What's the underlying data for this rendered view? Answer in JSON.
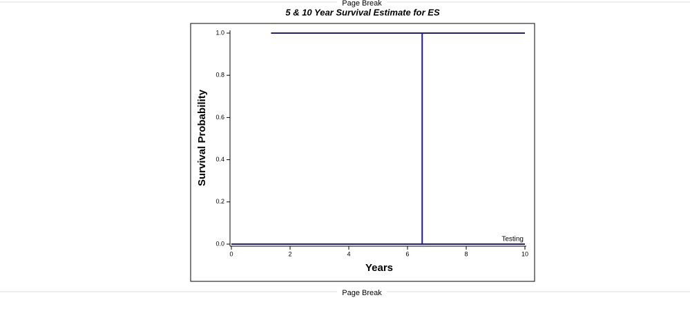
{
  "page_break_top": "Page Break",
  "page_break_bottom": "Page Break",
  "chart_data": {
    "type": "line",
    "title": "5 & 10 Year Survival Estimate for ES",
    "x_label": "Years",
    "y_label": "Survival Probability",
    "xlim": [
      0,
      10
    ],
    "xticks": [
      0,
      2,
      4,
      6,
      8,
      10
    ],
    "ylim": [
      0,
      1
    ],
    "yticks": [
      {
        "value": 0,
        "label": "0.0"
      },
      {
        "value": 0.2,
        "label": "0.2"
      },
      {
        "value": 0.4,
        "label": "0.4"
      },
      {
        "value": 0.6,
        "label": "0.6"
      },
      {
        "value": 0.8,
        "label": "0.8"
      },
      {
        "value": 1,
        "label": "1.0"
      }
    ],
    "series": [
      {
        "name": "Testing",
        "color": "#1c1c8f",
        "x": [
          0,
          10
        ],
        "values": [
          0,
          0
        ]
      },
      {
        "color": "#1c1c8f",
        "x": [
          1.35,
          10
        ],
        "values": [
          1,
          1
        ]
      },
      {
        "color": "#1c1c8f",
        "x": [
          6.5,
          6.5
        ],
        "values": [
          0,
          1
        ]
      }
    ]
  }
}
